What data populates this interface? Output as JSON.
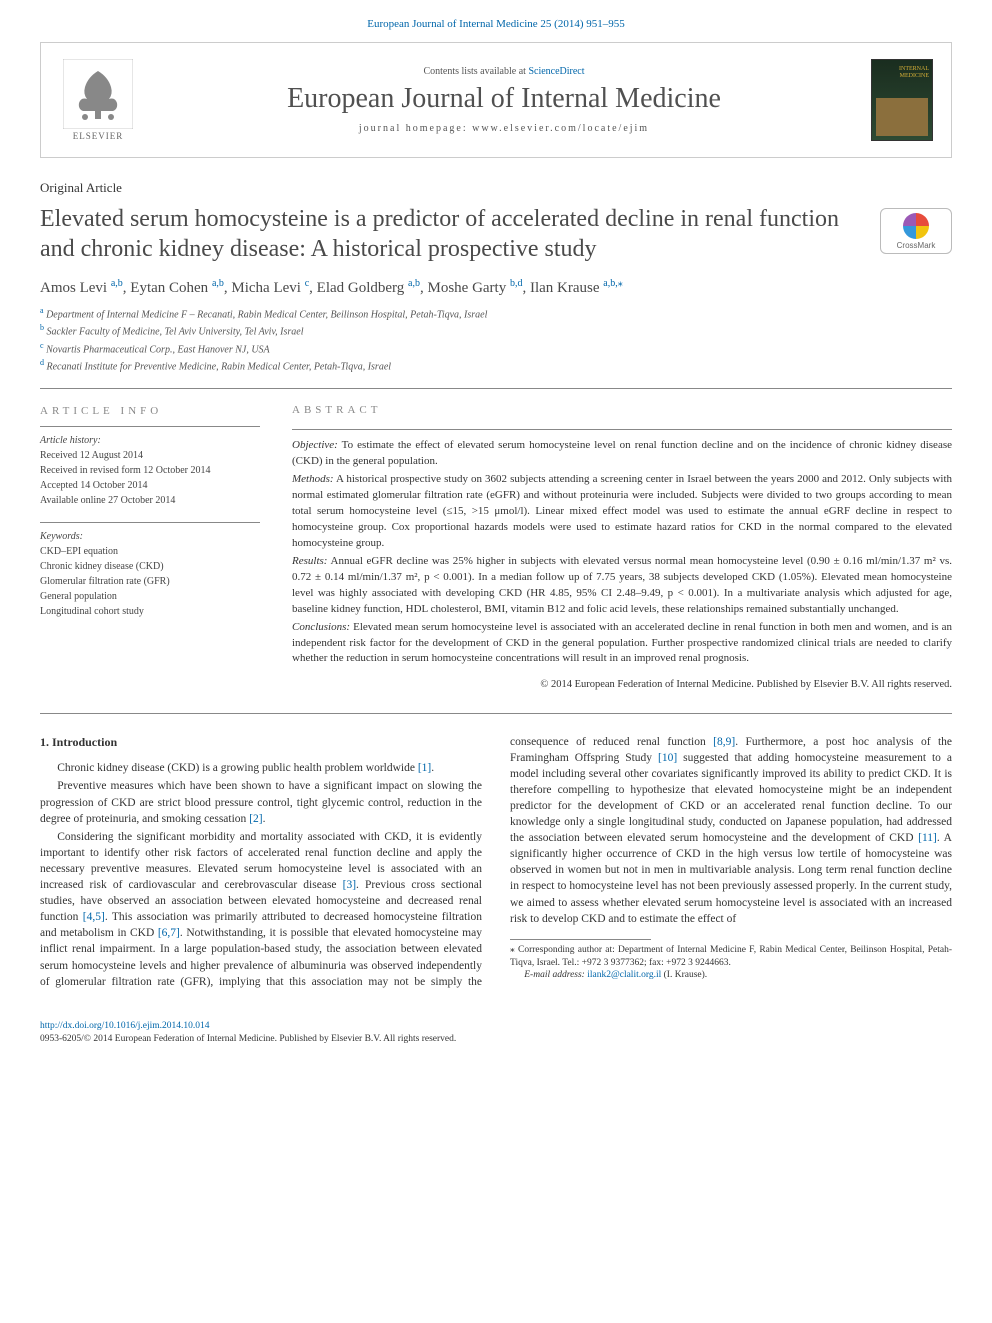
{
  "top_link": {
    "journal": "European Journal of Internal Medicine",
    "citation": "25 (2014) 951–955"
  },
  "header": {
    "elsevier": "ELSEVIER",
    "contents_prefix": "Contents lists available at ",
    "contents_link": "ScienceDirect",
    "journal_name": "European Journal of Internal Medicine",
    "homepage_prefix": "journal homepage: ",
    "homepage_url": "www.elsevier.com/locate/ejim",
    "cover_top": "INTERNAL MEDICINE"
  },
  "article_type": "Original Article",
  "title": "Elevated serum homocysteine is a predictor of accelerated decline in renal function and chronic kidney disease: A historical prospective study",
  "crossmark": "CrossMark",
  "authors": [
    {
      "name": "Amos Levi",
      "aff": "a,b"
    },
    {
      "name": "Eytan Cohen",
      "aff": "a,b"
    },
    {
      "name": "Micha Levi",
      "aff": "c"
    },
    {
      "name": "Elad Goldberg",
      "aff": "a,b"
    },
    {
      "name": "Moshe Garty",
      "aff": "b,d"
    },
    {
      "name": "Ilan Krause",
      "aff": "a,b,",
      "star": true
    }
  ],
  "affiliations": [
    {
      "key": "a",
      "text": "Department of Internal Medicine F – Recanati, Rabin Medical Center, Beilinson Hospital, Petah-Tiqva, Israel"
    },
    {
      "key": "b",
      "text": "Sackler Faculty of Medicine, Tel Aviv University, Tel Aviv, Israel"
    },
    {
      "key": "c",
      "text": "Novartis Pharmaceutical Corp., East Hanover NJ, USA"
    },
    {
      "key": "d",
      "text": "Recanati Institute for Preventive Medicine, Rabin Medical Center, Petah-Tiqva, Israel"
    }
  ],
  "info": {
    "heading": "article info",
    "history_label": "Article history:",
    "received": "Received 12 August 2014",
    "revised": "Received in revised form 12 October 2014",
    "accepted": "Accepted 14 October 2014",
    "online": "Available online 27 October 2014",
    "keywords_label": "Keywords:",
    "keywords": [
      "CKD–EPI equation",
      "Chronic kidney disease (CKD)",
      "Glomerular filtration rate (GFR)",
      "General population",
      "Longitudinal cohort study"
    ]
  },
  "abstract": {
    "heading": "abstract",
    "objective_label": "Objective:",
    "objective": " To estimate the effect of elevated serum homocysteine level on renal function decline and on the incidence of chronic kidney disease (CKD) in the general population.",
    "methods_label": "Methods:",
    "methods": " A historical prospective study on 3602 subjects attending a screening center in Israel between the years 2000 and 2012. Only subjects with normal estimated glomerular filtration rate (eGFR) and without proteinuria were included. Subjects were divided to two groups according to mean total serum homocysteine level (≤15, >15 μmol/l). Linear mixed effect model was used to estimate the annual eGRF decline in respect to homocysteine group. Cox proportional hazards models were used to estimate hazard ratios for CKD in the normal compared to the elevated homocysteine group.",
    "results_label": "Results:",
    "results": " Annual eGFR decline was 25% higher in subjects with elevated versus normal mean homocysteine level (0.90 ± 0.16 ml/min/1.37 m² vs. 0.72 ± 0.14 ml/min/1.37 m², p < 0.001). In a median follow up of 7.75 years, 38 subjects developed CKD (1.05%). Elevated mean homocysteine level was highly associated with developing CKD (HR 4.85, 95% CI 2.48–9.49, p < 0.001). In a multivariate analysis which adjusted for age, baseline kidney function, HDL cholesterol, BMI, vitamin B12 and folic acid levels, these relationships remained substantially unchanged.",
    "conclusions_label": "Conclusions:",
    "conclusions": " Elevated mean serum homocysteine level is associated with an accelerated decline in renal function in both men and women, and is an independent risk factor for the development of CKD in the general population. Further prospective randomized clinical trials are needed to clarify whether the reduction in serum homocysteine concentrations will result in an improved renal prognosis.",
    "copyright": "© 2014 European Federation of Internal Medicine. Published by Elsevier B.V. All rights reserved."
  },
  "intro": {
    "heading": "1. Introduction",
    "p1a": "Chronic kidney disease (CKD) is a growing public health problem worldwide ",
    "p1_ref": "[1]",
    "p1b": ".",
    "p2a": "Preventive measures which have been shown to have a significant impact on slowing the progression of CKD are strict blood pressure control, tight glycemic control, reduction in the degree of proteinuria, and smoking cessation ",
    "p2_ref": "[2]",
    "p2b": ".",
    "p3a": "Considering the significant morbidity and mortality associated with CKD, it is evidently important to identify other risk factors of accelerated renal function decline and apply the necessary preventive measures. Elevated serum homocysteine level is associated with an increased risk of cardiovascular and cerebrovascular disease ",
    "p3_ref1": "[3]",
    "p3b": ". Previous cross sectional studies, have observed an association between elevated homocysteine and decreased renal function ",
    "p3_ref2": "[4,5]",
    "p3c": ". This association was primarily attributed to decreased homocysteine filtration and metabolism in CKD ",
    "p3_ref3": "[6,7]",
    "p3d": ". Notwithstanding, it is possible that elevated homocysteine may inflict renal impairment. In a large population-based study, the association between elevated serum homocysteine levels and higher prevalence of albuminuria was observed independently of glomerular filtration rate (GFR), implying that this association may not be simply the consequence of reduced renal function ",
    "p3_ref4": "[8,9]",
    "p3e": ". Furthermore, a post hoc analysis of the Framingham Offspring Study ",
    "p3_ref5": "[10]",
    "p3f": " suggested that adding homocysteine measurement to a model including several other covariates significantly improved its ability to predict CKD. It is therefore compelling to hypothesize that elevated homocysteine might be an independent predictor for the development of CKD or an accelerated renal function decline. To our knowledge only a single longitudinal study, conducted on Japanese population, had addressed the association between elevated serum homocysteine and the development of CKD ",
    "p3_ref6": "[11]",
    "p3g": ". A significantly higher occurrence of CKD in the high versus low tertile of homocysteine was observed in women but not in men in multivariable analysis. Long term renal function decline in respect to homocysteine level has not been previously assessed properly. In the current study, we aimed to assess whether elevated serum homocysteine level is associated with an increased risk to develop CKD and to estimate the effect of"
  },
  "footnote": {
    "star": "⁎",
    "text1": " Corresponding author at: Department of Internal Medicine F, Rabin Medical Center, Beilinson Hospital, Petah-Tiqva, Israel. Tel.: +972 3 9377362; fax: +972 3 9244663.",
    "email_label": "E-mail address: ",
    "email": "ilank2@clalit.org.il",
    "email_suffix": " (I. Krause)."
  },
  "footer": {
    "doi": "http://dx.doi.org/10.1016/j.ejim.2014.10.014",
    "issn_line": "0953-6205/© 2014 European Federation of Internal Medicine. Published by Elsevier B.V. All rights reserved."
  }
}
